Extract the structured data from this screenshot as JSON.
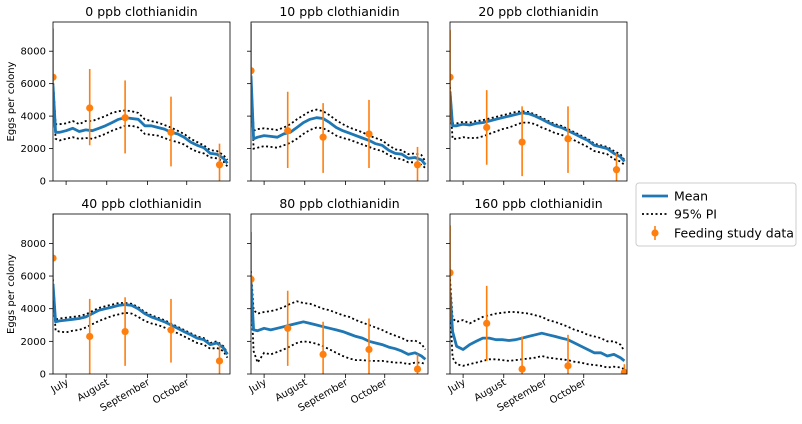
{
  "chart_data": {
    "type": "line",
    "ylabel": "Eggs per colony",
    "ylim": [
      0,
      9800
    ],
    "yticks": [
      0,
      2000,
      4000,
      6000,
      8000
    ],
    "xlim": [
      0,
      135
    ],
    "xticks": [
      {
        "label": "July",
        "x": 10
      },
      {
        "label": "August",
        "x": 41
      },
      {
        "label": "September",
        "x": 72
      },
      {
        "label": "October",
        "x": 102
      }
    ],
    "x": [
      0,
      2,
      5,
      10,
      15,
      20,
      25,
      30,
      35,
      40,
      45,
      50,
      55,
      60,
      65,
      70,
      75,
      80,
      85,
      90,
      95,
      100,
      105,
      110,
      115,
      120,
      125,
      130,
      133
    ],
    "legend": {
      "position": "right",
      "entries": [
        "Mean",
        "95% PI",
        "Feeding study data"
      ]
    },
    "colors": {
      "mean": "#1f77b4",
      "pi": "#000000",
      "feeding": "#ff7f0e"
    },
    "panels": [
      {
        "title": "0 ppb clothianidin",
        "mean": [
          5900,
          3000,
          3000,
          3100,
          3250,
          3050,
          3150,
          3100,
          3250,
          3400,
          3600,
          3800,
          3900,
          3850,
          3800,
          3400,
          3400,
          3300,
          3200,
          3000,
          2900,
          2700,
          2400,
          2200,
          2050,
          1700,
          1650,
          1400,
          1100
        ],
        "upper": [
          6300,
          3500,
          3500,
          3550,
          3700,
          3500,
          3700,
          3700,
          3850,
          4000,
          4200,
          4300,
          4350,
          4300,
          4200,
          3800,
          3700,
          3600,
          3450,
          3300,
          3100,
          2900,
          2600,
          2400,
          2200,
          1900,
          1850,
          1600,
          1300
        ],
        "lower": [
          5400,
          2600,
          2500,
          2600,
          2700,
          2600,
          2650,
          2600,
          2750,
          2900,
          3100,
          3250,
          3400,
          3400,
          3300,
          2900,
          2850,
          2800,
          2650,
          2500,
          2400,
          2250,
          2000,
          1800,
          1700,
          1450,
          1400,
          1200,
          900
        ],
        "feeding": [
          {
            "x": 0,
            "y": 6400,
            "lo": 3300,
            "hi": 9400
          },
          {
            "x": 28,
            "y": 4500,
            "lo": 2200,
            "hi": 6900
          },
          {
            "x": 55,
            "y": 3900,
            "lo": 1700,
            "hi": 6200
          },
          {
            "x": 90,
            "y": 3000,
            "lo": 900,
            "hi": 5200
          },
          {
            "x": 127,
            "y": 1000,
            "lo": 0,
            "hi": 2300
          }
        ]
      },
      {
        "title": "10 ppb clothianidin",
        "mean": [
          6500,
          2600,
          2700,
          2800,
          2750,
          2700,
          2900,
          3000,
          3300,
          3600,
          3800,
          3900,
          3850,
          3600,
          3300,
          3100,
          2950,
          2800,
          2650,
          2500,
          2300,
          2200,
          1900,
          1700,
          1650,
          1400,
          1450,
          1300,
          1000
        ],
        "upper": [
          6700,
          3100,
          3200,
          3250,
          3200,
          3150,
          3300,
          3500,
          3800,
          4050,
          4300,
          4400,
          4300,
          4050,
          3750,
          3500,
          3300,
          3150,
          3000,
          2800,
          2650,
          2500,
          2200,
          1950,
          1900,
          1650,
          1700,
          1600,
          1200
        ],
        "lower": [
          6200,
          2000,
          2050,
          2150,
          2100,
          2050,
          2200,
          2350,
          2600,
          2900,
          3150,
          3300,
          3250,
          3050,
          2800,
          2650,
          2550,
          2400,
          2250,
          2100,
          1950,
          1850,
          1600,
          1400,
          1350,
          1150,
          1150,
          1000,
          800
        ],
        "feeding": [
          {
            "x": 0,
            "y": 6800,
            "lo": 3700,
            "hi": 9700
          },
          {
            "x": 28,
            "y": 3100,
            "lo": 800,
            "hi": 5500
          },
          {
            "x": 55,
            "y": 2700,
            "lo": 500,
            "hi": 4800
          },
          {
            "x": 90,
            "y": 2900,
            "lo": 800,
            "hi": 5000
          },
          {
            "x": 127,
            "y": 1000,
            "lo": 0,
            "hi": 2100
          }
        ]
      },
      {
        "title": "20 ppb clothianidin",
        "mean": [
          5500,
          3400,
          3400,
          3500,
          3450,
          3550,
          3600,
          3700,
          3800,
          3900,
          4000,
          4100,
          4200,
          4150,
          4000,
          3800,
          3600,
          3400,
          3300,
          3100,
          2900,
          2700,
          2500,
          2200,
          2100,
          2000,
          1700,
          1500,
          1200
        ],
        "upper": [
          5800,
          3550,
          3550,
          3650,
          3600,
          3700,
          3750,
          3850,
          3950,
          4050,
          4150,
          4250,
          4300,
          4250,
          4100,
          3900,
          3700,
          3500,
          3400,
          3200,
          3000,
          2800,
          2600,
          2300,
          2200,
          2100,
          1850,
          1650,
          1300
        ],
        "lower": [
          5000,
          2600,
          2600,
          2700,
          2650,
          2650,
          2750,
          2900,
          3050,
          3200,
          3300,
          3450,
          3600,
          3600,
          3500,
          3300,
          3150,
          2950,
          2850,
          2700,
          2500,
          2300,
          2100,
          1850,
          1750,
          1650,
          1350,
          1200,
          1000
        ],
        "feeding": [
          {
            "x": 0,
            "y": 6400,
            "lo": 3600,
            "hi": 9300
          },
          {
            "x": 28,
            "y": 3300,
            "lo": 1000,
            "hi": 5600
          },
          {
            "x": 55,
            "y": 2400,
            "lo": 300,
            "hi": 4600
          },
          {
            "x": 90,
            "y": 2600,
            "lo": 500,
            "hi": 4600
          },
          {
            "x": 127,
            "y": 700,
            "lo": 0,
            "hi": 1700
          }
        ]
      },
      {
        "title": "40 ppb clothianidin",
        "mean": [
          5500,
          3200,
          3250,
          3300,
          3350,
          3400,
          3500,
          3700,
          3900,
          4000,
          4100,
          4200,
          4250,
          4200,
          4000,
          3700,
          3500,
          3350,
          3200,
          3000,
          2800,
          2600,
          2400,
          2200,
          2100,
          1800,
          1900,
          1600,
          1200
        ],
        "upper": [
          5800,
          3350,
          3400,
          3450,
          3500,
          3550,
          3650,
          3850,
          4050,
          4150,
          4250,
          4350,
          4350,
          4300,
          4100,
          3800,
          3600,
          3450,
          3300,
          3100,
          2900,
          2700,
          2500,
          2300,
          2200,
          1900,
          2000,
          1700,
          1300
        ],
        "lower": [
          5000,
          2650,
          2600,
          2550,
          2650,
          2700,
          2850,
          3050,
          3250,
          3400,
          3550,
          3650,
          3750,
          3700,
          3500,
          3250,
          3100,
          3000,
          2850,
          2650,
          2500,
          2300,
          2100,
          1900,
          1800,
          1550,
          1600,
          1400,
          1000
        ],
        "feeding": [
          {
            "x": 0,
            "y": 7100,
            "lo": 4500,
            "hi": 9800
          },
          {
            "x": 28,
            "y": 2300,
            "lo": 0,
            "hi": 4600
          },
          {
            "x": 55,
            "y": 2600,
            "lo": 500,
            "hi": 4700
          },
          {
            "x": 90,
            "y": 2700,
            "lo": 700,
            "hi": 4600
          },
          {
            "x": 127,
            "y": 800,
            "lo": 0,
            "hi": 1800
          }
        ]
      },
      {
        "title": "80 ppb clothianidin",
        "mean": [
          5600,
          2700,
          2650,
          2800,
          2700,
          2800,
          2900,
          3000,
          3100,
          3200,
          3100,
          3000,
          2900,
          2800,
          2700,
          2600,
          2450,
          2300,
          2200,
          2000,
          1900,
          1800,
          1650,
          1550,
          1400,
          1200,
          1300,
          1100,
          900
        ],
        "upper": [
          6300,
          3900,
          3700,
          3800,
          3850,
          3950,
          4100,
          4300,
          4450,
          4350,
          4300,
          4150,
          4000,
          3900,
          3750,
          3600,
          3500,
          3300,
          3150,
          3000,
          2850,
          2700,
          2500,
          2350,
          2200,
          2000,
          2050,
          1850,
          1500
        ],
        "lower": [
          5000,
          1400,
          700,
          1300,
          1200,
          1350,
          1500,
          1700,
          1900,
          2000,
          1950,
          1850,
          1700,
          1500,
          1300,
          1100,
          950,
          850,
          850,
          800,
          800,
          800,
          750,
          700,
          700,
          600,
          700,
          700,
          600
        ],
        "feeding": [
          {
            "x": 0,
            "y": 5800,
            "lo": 3000,
            "hi": 8700
          },
          {
            "x": 28,
            "y": 2800,
            "lo": 500,
            "hi": 5100
          },
          {
            "x": 55,
            "y": 1200,
            "lo": 0,
            "hi": 3200
          },
          {
            "x": 90,
            "y": 1500,
            "lo": 0,
            "hi": 3400
          },
          {
            "x": 127,
            "y": 300,
            "lo": 0,
            "hi": 1200
          }
        ]
      },
      {
        "title": "160 ppb clothianidin",
        "mean": [
          5000,
          2600,
          1700,
          1500,
          1800,
          2000,
          2200,
          2200,
          2100,
          2100,
          2050,
          2100,
          2200,
          2300,
          2400,
          2500,
          2400,
          2300,
          2200,
          2100,
          1900,
          1700,
          1500,
          1300,
          1300,
          1100,
          1200,
          1000,
          800
        ],
        "upper": [
          5800,
          3400,
          3200,
          3300,
          3100,
          3300,
          3500,
          3600,
          3700,
          3750,
          3800,
          3800,
          3750,
          3700,
          3600,
          3500,
          3300,
          3200,
          3050,
          2900,
          2700,
          2600,
          2400,
          2300,
          2200,
          2000,
          2000,
          1800,
          1400
        ],
        "lower": [
          4000,
          1000,
          600,
          500,
          600,
          700,
          800,
          900,
          900,
          850,
          800,
          850,
          900,
          950,
          1000,
          1100,
          1000,
          950,
          900,
          850,
          750,
          700,
          600,
          550,
          500,
          400,
          450,
          400,
          300
        ],
        "feeding": [
          {
            "x": 0,
            "y": 6200,
            "lo": 3300,
            "hi": 9100
          },
          {
            "x": 28,
            "y": 3100,
            "lo": 800,
            "hi": 5400
          },
          {
            "x": 55,
            "y": 300,
            "lo": 0,
            "hi": 2300
          },
          {
            "x": 90,
            "y": 500,
            "lo": 0,
            "hi": 2400
          },
          {
            "x": 133,
            "y": 100,
            "lo": 0,
            "hi": 600
          }
        ]
      }
    ]
  }
}
